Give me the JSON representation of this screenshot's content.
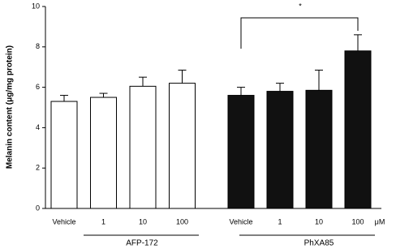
{
  "chart_data": {
    "type": "bar",
    "y_label": "Melanin content (μg/mg protein)",
    "ylim": [
      0,
      10
    ],
    "yticks": [
      0,
      2,
      4,
      6,
      8,
      10
    ],
    "x_unit": "μM",
    "series": [
      {
        "name": "AFP-172",
        "color": "#ffffff",
        "categories": [
          "Vehicle",
          "1",
          "10",
          "100"
        ],
        "values": [
          5.3,
          5.5,
          6.05,
          6.2
        ],
        "errors": [
          0.3,
          0.2,
          0.45,
          0.65
        ]
      },
      {
        "name": "PhXA85",
        "color": "#111111",
        "categories": [
          "Vehicle",
          "1",
          "10",
          "100"
        ],
        "values": [
          5.6,
          5.8,
          5.85,
          7.8
        ],
        "errors": [
          0.4,
          0.4,
          1.0,
          0.8
        ]
      }
    ],
    "annotation": "*"
  }
}
